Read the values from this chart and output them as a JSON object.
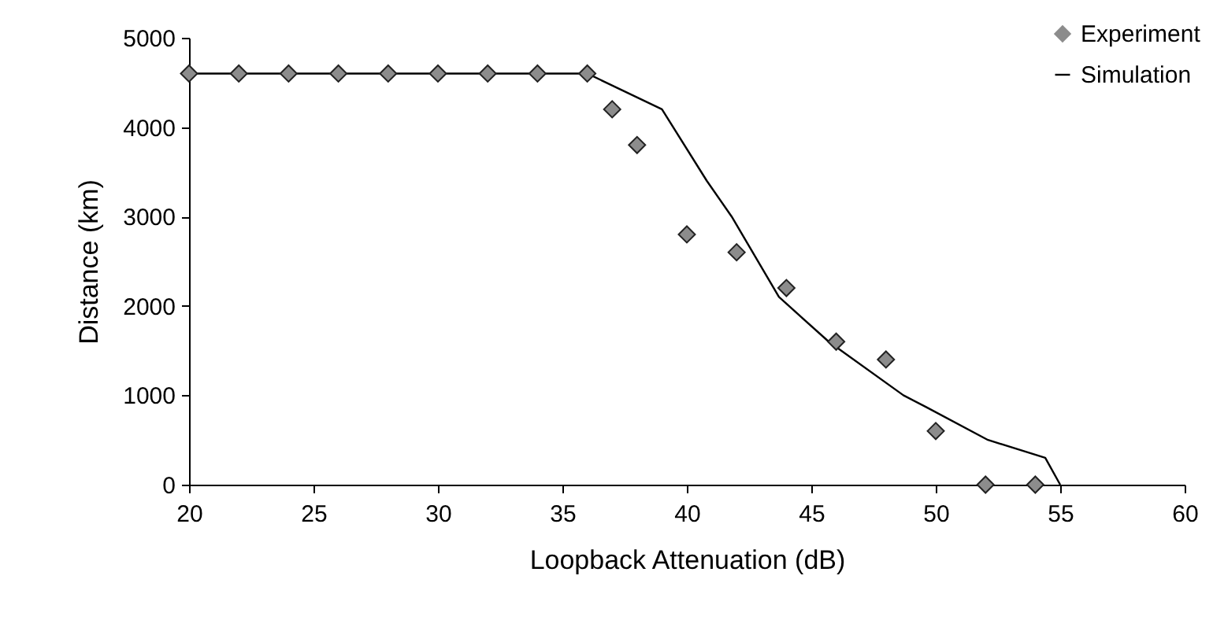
{
  "chart_data": {
    "type": "scatter",
    "xlabel": "Loopback Attenuation (dB)",
    "ylabel": "Distance (km)",
    "xlim": [
      20,
      60
    ],
    "xticks": [
      20,
      25,
      30,
      35,
      40,
      45,
      50,
      55,
      60
    ],
    "ylim": [
      0,
      5000
    ],
    "yticks": [
      0,
      1000,
      2000,
      3000,
      4000,
      5000
    ],
    "grid": false,
    "legend": "top right",
    "series": [
      {
        "name": "Experiment",
        "marker": "diamond",
        "color": "#8c8c8c",
        "x": [
          20,
          22,
          24,
          26,
          28,
          30,
          32,
          34,
          36,
          37,
          38,
          40,
          42,
          44,
          46,
          48,
          50,
          52,
          54
        ],
        "values": [
          4600,
          4600,
          4600,
          4600,
          4600,
          4600,
          4600,
          4600,
          4600,
          4200,
          3800,
          2800,
          2600,
          2200,
          1600,
          1400,
          600,
          0,
          0
        ]
      },
      {
        "name": "Simulation",
        "type": "line",
        "line_style": "solid",
        "color": "#000000",
        "x": [
          20,
          36,
          39,
          40.8,
          41.8,
          43.7,
          45.7,
          48.7,
          49.6,
          52.1,
          54.4,
          55
        ],
        "values": [
          4600,
          4600,
          4200,
          3400,
          3000,
          2100,
          1600,
          1000,
          870,
          500,
          300,
          0
        ]
      }
    ]
  }
}
